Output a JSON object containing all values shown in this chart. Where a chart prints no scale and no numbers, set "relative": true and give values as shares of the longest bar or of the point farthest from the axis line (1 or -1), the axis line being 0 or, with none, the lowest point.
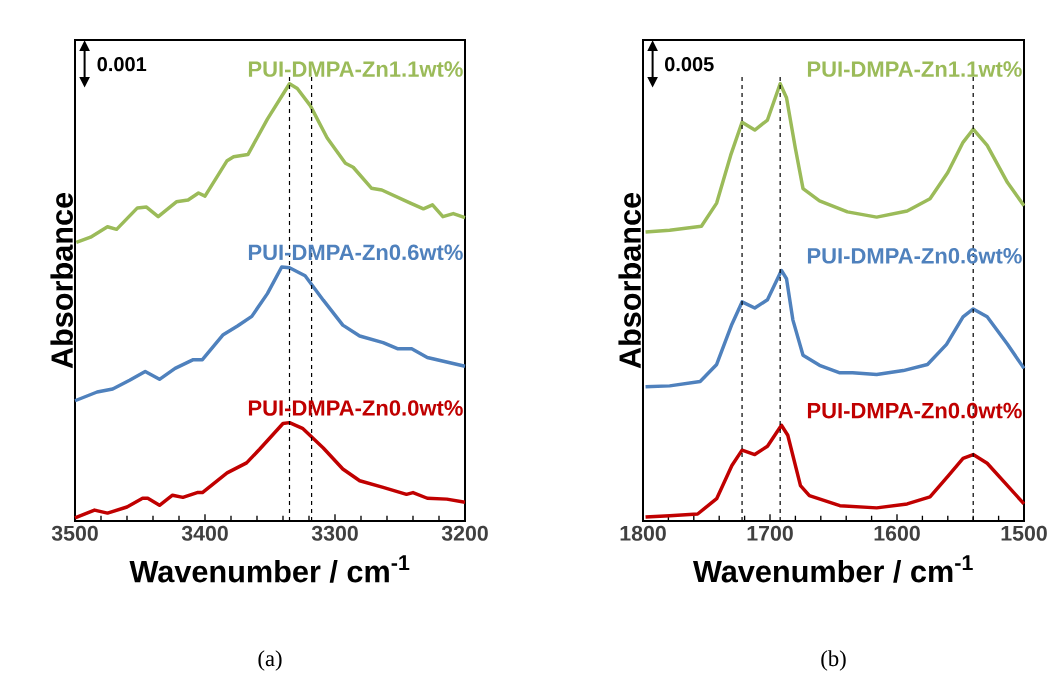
{
  "chart_data": [
    {
      "type": "line",
      "relative": true,
      "xlabel": "Wavenumber / cm$^{-1}$",
      "ylabel": "Absorbance",
      "xlim": [
        3500,
        3200
      ],
      "xticks": [
        3500,
        3400,
        3300,
        3200
      ],
      "legend": false,
      "grid": false,
      "marker": "none",
      "line_style": "solid",
      "annotations": [
        "0.001",
        "(a)"
      ],
      "ref_lines": [
        {
          "axis": "x",
          "value": 3335,
          "line_style": "dashed",
          "color": "#000000"
        },
        {
          "axis": "x",
          "value": 3318,
          "line_style": "dashed",
          "color": "#000000"
        }
      ],
      "series": [
        {
          "name": "PUI-DMPA-Zn1.1wt%",
          "color": "#9bbb59",
          "x": [
            3499,
            3488,
            3475,
            3468,
            3452,
            3445,
            3436,
            3422,
            3413,
            3405,
            3400,
            3383,
            3378,
            3367,
            3352,
            3335,
            3329,
            3319,
            3306,
            3292,
            3286,
            3272,
            3264,
            3242,
            3232,
            3225,
            3217,
            3209,
            3200
          ],
          "values": [
            0.637,
            0.649,
            0.673,
            0.667,
            0.716,
            0.718,
            0.696,
            0.73,
            0.734,
            0.75,
            0.743,
            0.824,
            0.833,
            0.838,
            0.919,
            1.0,
            0.989,
            0.95,
            0.876,
            0.818,
            0.809,
            0.761,
            0.757,
            0.727,
            0.714,
            0.723,
            0.696,
            0.703,
            0.694
          ]
        },
        {
          "name": "PUI-DMPA-Zn0.6wt%",
          "color": "#4f81bd",
          "x": [
            3500,
            3483,
            3471,
            3458,
            3446,
            3435,
            3423,
            3409,
            3402,
            3386,
            3375,
            3364,
            3352,
            3341,
            3335,
            3323,
            3309,
            3294,
            3281,
            3263,
            3252,
            3241,
            3229,
            3200
          ],
          "values": [
            0.275,
            0.295,
            0.302,
            0.322,
            0.342,
            0.324,
            0.349,
            0.369,
            0.369,
            0.426,
            0.446,
            0.468,
            0.52,
            0.581,
            0.579,
            0.561,
            0.505,
            0.448,
            0.423,
            0.408,
            0.394,
            0.394,
            0.374,
            0.354
          ]
        },
        {
          "name": "PUI-DMPA-Zn0.0wt%",
          "color": "#c00000",
          "x": [
            3500,
            3485,
            3475,
            3460,
            3448,
            3444,
            3435,
            3425,
            3417,
            3406,
            3402,
            3383,
            3368,
            3358,
            3340,
            3335,
            3325,
            3309,
            3294,
            3281,
            3263,
            3245,
            3240,
            3229,
            3214,
            3200
          ],
          "values": [
            0.007,
            0.025,
            0.018,
            0.032,
            0.052,
            0.052,
            0.036,
            0.059,
            0.054,
            0.065,
            0.065,
            0.11,
            0.133,
            0.164,
            0.223,
            0.225,
            0.212,
            0.167,
            0.119,
            0.092,
            0.077,
            0.061,
            0.065,
            0.052,
            0.05,
            0.043
          ]
        }
      ]
    },
    {
      "type": "line",
      "relative": true,
      "xlabel": "Wavenumber / cm$^{-1}$",
      "ylabel": "Absorbance",
      "xlim": [
        1800,
        1500
      ],
      "xticks": [
        1800,
        1700,
        1600,
        1500
      ],
      "legend": false,
      "grid": false,
      "marker": "none",
      "line_style": "solid",
      "annotations": [
        "0.005",
        "(b)"
      ],
      "ref_lines": [
        {
          "axis": "x",
          "value": 1722,
          "line_style": "dashed",
          "color": "#000000"
        },
        {
          "axis": "x",
          "value": 1692,
          "line_style": "dashed",
          "color": "#000000"
        },
        {
          "axis": "x",
          "value": 1540,
          "line_style": "dashed",
          "color": "#000000"
        }
      ],
      "series": [
        {
          "name": "PUI-DMPA-Zn1.1wt%",
          "color": "#9bbb59",
          "x": [
            1798,
            1779,
            1754,
            1742,
            1731,
            1722,
            1712,
            1702,
            1692,
            1687,
            1680,
            1674,
            1661,
            1639,
            1616,
            1592,
            1574,
            1560,
            1548,
            1540,
            1529,
            1513,
            1500
          ],
          "values": [
            0.661,
            0.665,
            0.674,
            0.727,
            0.836,
            0.912,
            0.894,
            0.917,
            1.0,
            0.968,
            0.852,
            0.76,
            0.732,
            0.707,
            0.695,
            0.709,
            0.737,
            0.797,
            0.866,
            0.896,
            0.859,
            0.774,
            0.721
          ]
        },
        {
          "name": "PUI-DMPA-Zn0.6wt%",
          "color": "#4f81bd",
          "x": [
            1798,
            1779,
            1755,
            1742,
            1730,
            1722,
            1712,
            1702,
            1691,
            1687,
            1682,
            1674,
            1661,
            1645,
            1635,
            1616,
            1595,
            1576,
            1561,
            1548,
            1540,
            1529,
            1513,
            1500
          ],
          "values": [
            0.307,
            0.309,
            0.319,
            0.358,
            0.45,
            0.501,
            0.487,
            0.506,
            0.573,
            0.554,
            0.46,
            0.379,
            0.356,
            0.339,
            0.339,
            0.335,
            0.344,
            0.358,
            0.404,
            0.467,
            0.485,
            0.467,
            0.404,
            0.349
          ]
        },
        {
          "name": "PUI-DMPA-Zn0.0wt%",
          "color": "#c00000",
          "x": [
            1798,
            1779,
            1757,
            1742,
            1730,
            1722,
            1712,
            1702,
            1691,
            1686,
            1676,
            1669,
            1645,
            1616,
            1592,
            1574,
            1560,
            1548,
            1540,
            1529,
            1513,
            1500
          ],
          "values": [
            0.009,
            0.012,
            0.016,
            0.051,
            0.127,
            0.162,
            0.152,
            0.171,
            0.219,
            0.196,
            0.081,
            0.058,
            0.035,
            0.03,
            0.039,
            0.055,
            0.102,
            0.143,
            0.152,
            0.132,
            0.081,
            0.039
          ]
        }
      ]
    }
  ]
}
